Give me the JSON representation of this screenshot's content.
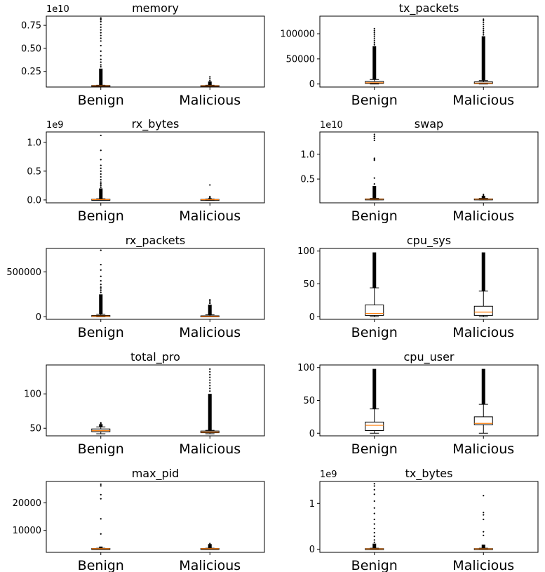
{
  "chart_data": [
    {
      "type": "box",
      "title": "memory",
      "offset_label": "1e10",
      "categories": [
        "Benign",
        "Malicious"
      ],
      "yticks": [
        0.25,
        0.5,
        0.75
      ],
      "ytick_labels": [
        "0.25",
        "0.50",
        "0.75"
      ],
      "ylim": [
        0.08,
        0.85
      ],
      "boxes": [
        {
          "q1": 0.088,
          "median": 0.092,
          "q3": 0.097,
          "whisker_low": 0.08,
          "whisker_high": 0.1,
          "outlier_band": [
            0.1,
            0.28
          ],
          "outliers": [
            0.3,
            0.32,
            0.35,
            0.38,
            0.42,
            0.47,
            0.53,
            0.58,
            0.61,
            0.64,
            0.67,
            0.7,
            0.73,
            0.76,
            0.79,
            0.81,
            0.82,
            0.83
          ]
        },
        {
          "q1": 0.088,
          "median": 0.092,
          "q3": 0.096,
          "whisker_low": 0.08,
          "whisker_high": 0.1,
          "outlier_band": [
            0.1,
            0.14
          ],
          "outliers": [
            0.15,
            0.17,
            0.19
          ]
        }
      ]
    },
    {
      "type": "box",
      "title": "tx_packets",
      "categories": [
        "Benign",
        "Malicious"
      ],
      "yticks": [
        0,
        50000,
        100000
      ],
      "ytick_labels": [
        "0",
        "50000",
        "100000"
      ],
      "ylim": [
        -6000,
        135000
      ],
      "boxes": [
        {
          "q1": 1200,
          "median": 2500,
          "q3": 5000,
          "whisker_low": 0,
          "whisker_high": 9000,
          "outlier_band": [
            9000,
            75000
          ],
          "outliers": [
            78000,
            82000,
            86000,
            90000,
            94000,
            98000,
            102000,
            106000,
            110000
          ]
        },
        {
          "q1": 800,
          "median": 1800,
          "q3": 4200,
          "whisker_low": 0,
          "whisker_high": 7000,
          "outlier_band": [
            7000,
            95000
          ],
          "outliers": [
            98000,
            102000,
            106000,
            110000,
            114000,
            118000,
            122000,
            126000,
            129000
          ]
        }
      ]
    },
    {
      "type": "box",
      "title": "rx_bytes",
      "offset_label": "1e9",
      "categories": [
        "Benign",
        "Malicious"
      ],
      "yticks": [
        0,
        0.5,
        1.0
      ],
      "ytick_labels": [
        "0.0",
        "0.5",
        "1.0"
      ],
      "ylim": [
        -0.05,
        1.18
      ],
      "boxes": [
        {
          "q1": 0.002,
          "median": 0.006,
          "q3": 0.012,
          "whisker_low": 0,
          "whisker_high": 0.02,
          "outlier_band": [
            0.02,
            0.2
          ],
          "outliers": [
            0.22,
            0.25,
            0.28,
            0.31,
            0.35,
            0.4,
            0.45,
            0.5,
            0.55,
            0.6,
            0.7,
            0.86,
            1.12
          ]
        },
        {
          "q1": 0.001,
          "median": 0.004,
          "q3": 0.009,
          "whisker_low": 0,
          "whisker_high": 0.015,
          "outlier_band": [
            0.015,
            0.03
          ],
          "outliers": [
            0.04,
            0.05,
            0.06,
            0.26
          ]
        }
      ]
    },
    {
      "type": "box",
      "title": "swap",
      "offset_label": "1e10",
      "categories": [
        "Benign",
        "Malicious"
      ],
      "yticks": [
        0.5,
        1.0
      ],
      "ytick_labels": [
        "0.5",
        "1.0"
      ],
      "ylim": [
        0.02,
        1.45
      ],
      "boxes": [
        {
          "q1": 0.09,
          "median": 0.095,
          "q3": 0.1,
          "whisker_low": 0.08,
          "whisker_high": 0.11,
          "outlier_band": [
            0.11,
            0.36
          ],
          "outliers": [
            0.4,
            0.52,
            0.88,
            0.9,
            0.92,
            1.28,
            1.32,
            1.36,
            1.4
          ]
        },
        {
          "q1": 0.09,
          "median": 0.095,
          "q3": 0.1,
          "whisker_low": 0.08,
          "whisker_high": 0.11,
          "outlier_band": [
            0.11,
            0.16
          ],
          "outliers": [
            0.17,
            0.19
          ]
        }
      ]
    },
    {
      "type": "box",
      "title": "rx_packets",
      "categories": [
        "Benign",
        "Malicious"
      ],
      "yticks": [
        0,
        500000
      ],
      "ytick_labels": [
        "0",
        "500000"
      ],
      "ylim": [
        -28000,
        760000
      ],
      "boxes": [
        {
          "q1": 3000,
          "median": 8000,
          "q3": 15000,
          "whisker_low": 0,
          "whisker_high": 28000,
          "outlier_band": [
            28000,
            250000
          ],
          "outliers": [
            270000,
            290000,
            310000,
            330000,
            360000,
            400000,
            450000,
            520000,
            580000,
            740000
          ]
        },
        {
          "q1": 2000,
          "median": 6000,
          "q3": 11000,
          "whisker_low": 0,
          "whisker_high": 22000,
          "outlier_band": [
            22000,
            135000
          ],
          "outliers": [
            150000,
            165000,
            180000,
            190000
          ]
        }
      ]
    },
    {
      "type": "box",
      "title": "cpu_sys",
      "categories": [
        "Benign",
        "Malicious"
      ],
      "yticks": [
        0,
        50,
        100
      ],
      "ytick_labels": [
        "0",
        "50",
        "100"
      ],
      "ylim": [
        -4,
        104
      ],
      "boxes": [
        {
          "q1": 2,
          "median": 5,
          "q3": 18,
          "whisker_low": 0,
          "whisker_high": 44,
          "outlier_band": [
            44,
            98
          ],
          "outliers": []
        },
        {
          "q1": 2,
          "median": 7,
          "q3": 16,
          "whisker_low": 0,
          "whisker_high": 39,
          "outlier_band": [
            39,
            98
          ],
          "outliers": []
        }
      ]
    },
    {
      "type": "box",
      "title": "total_pro",
      "categories": [
        "Benign",
        "Malicious"
      ],
      "yticks": [
        50,
        100
      ],
      "ytick_labels": [
        "50",
        "100"
      ],
      "ylim": [
        39,
        142
      ],
      "boxes": [
        {
          "q1": 45,
          "median": 46.5,
          "q3": 49,
          "whisker_low": 42,
          "whisker_high": 52,
          "outlier_band": [
            52,
            56
          ],
          "outliers": [
            57,
            58
          ]
        },
        {
          "q1": 43.5,
          "median": 44.5,
          "q3": 46,
          "whisker_low": 42,
          "whisker_high": 47,
          "outlier_band": [
            47,
            100
          ],
          "outliers": [
            104,
            108,
            112,
            116,
            120,
            124,
            128,
            132,
            136
          ]
        }
      ]
    },
    {
      "type": "box",
      "title": "cpu_user",
      "categories": [
        "Benign",
        "Malicious"
      ],
      "yticks": [
        0,
        50,
        100
      ],
      "ytick_labels": [
        "0",
        "50",
        "100"
      ],
      "ylim": [
        -4,
        104
      ],
      "boxes": [
        {
          "q1": 4,
          "median": 12,
          "q3": 17,
          "whisker_low": 0,
          "whisker_high": 37,
          "outlier_band": [
            37,
            98
          ],
          "outliers": []
        },
        {
          "q1": 13,
          "median": 15,
          "q3": 25,
          "whisker_low": 0,
          "whisker_high": 44,
          "outlier_band": [
            44,
            98
          ],
          "outliers": []
        }
      ]
    },
    {
      "type": "box",
      "title": "max_pid",
      "categories": [
        "Benign",
        "Malicious"
      ],
      "yticks": [
        10000,
        20000
      ],
      "ytick_labels": [
        "10000",
        "20000"
      ],
      "ylim": [
        2000,
        27800
      ],
      "boxes": [
        {
          "q1": 3250,
          "median": 3300,
          "q3": 3400,
          "whisker_low": 3100,
          "whisker_high": 3500,
          "outlier_band": [
            3500,
            4100
          ],
          "outliers": [
            8700,
            14200,
            21500,
            23000,
            26200,
            26800
          ]
        },
        {
          "q1": 3250,
          "median": 3300,
          "q3": 3400,
          "whisker_low": 3100,
          "whisker_high": 3500,
          "outlier_band": [
            3500,
            5000
          ],
          "outliers": [
            5200
          ]
        }
      ]
    },
    {
      "type": "box",
      "title": "tx_bytes",
      "offset_label": "1e9",
      "categories": [
        "Benign",
        "Malicious"
      ],
      "yticks": [
        0,
        1
      ],
      "ytick_labels": [
        "0",
        "1"
      ],
      "ylim": [
        -0.07,
        1.48
      ],
      "boxes": [
        {
          "q1": 0.002,
          "median": 0.006,
          "q3": 0.012,
          "whisker_low": 0,
          "whisker_high": 0.02,
          "outlier_band": [
            0.02,
            0.12
          ],
          "outliers": [
            0.15,
            0.2,
            0.28,
            0.36,
            0.45,
            0.55,
            0.65,
            0.78,
            0.9,
            1.05,
            1.2,
            1.3,
            1.38,
            1.43
          ]
        },
        {
          "q1": 0.002,
          "median": 0.006,
          "q3": 0.012,
          "whisker_low": 0,
          "whisker_high": 0.02,
          "outlier_band": [
            0.02,
            0.1
          ],
          "outliers": [
            0.3,
            0.38,
            0.65,
            0.75,
            0.8,
            1.17
          ]
        }
      ]
    }
  ]
}
